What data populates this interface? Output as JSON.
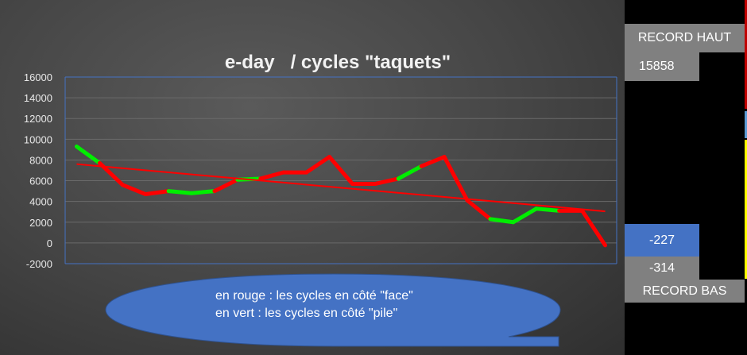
{
  "chart_data": {
    "type": "line",
    "title": "e-day   / cycles \"taquets\"",
    "xlabel": "",
    "ylabel": "",
    "ylim": [
      -2000,
      16000
    ],
    "yticks": [
      -2000,
      0,
      2000,
      4000,
      6000,
      8000,
      10000,
      12000,
      14000,
      16000
    ],
    "grid": true,
    "values": [
      9300,
      7700,
      5600,
      4700,
      5000,
      4800,
      5000,
      6100,
      6200,
      6800,
      6800,
      8300,
      5700,
      5700,
      6200,
      7400,
      8300,
      4100,
      2300,
      2000,
      3300,
      3100,
      3100,
      -227
    ],
    "segment_colors": [
      "green",
      "red",
      "red",
      "red",
      "green",
      "green",
      "red",
      "green",
      "red",
      "red",
      "red",
      "red",
      "red",
      "red",
      "green",
      "red",
      "red",
      "red",
      "green",
      "green",
      "green",
      "red",
      "red"
    ],
    "trendline": {
      "type": "linear",
      "start": 7600,
      "end": 3050,
      "color": "#ff0000"
    },
    "colors": {
      "red": "#ff0000",
      "green": "#00ee00",
      "axis": "#4472c4"
    }
  },
  "callout": {
    "line1": "en rouge : les cycles en côté \"face\"",
    "line2": "en vert : les cycles en côté \"pile\"",
    "color": "#4472c4"
  },
  "side": {
    "record_haut_label": "RECORD HAUT",
    "record_haut_value": "15858",
    "current_value": "-227",
    "record_bas_value": "-314",
    "record_bas_label": "RECORD BAS"
  }
}
